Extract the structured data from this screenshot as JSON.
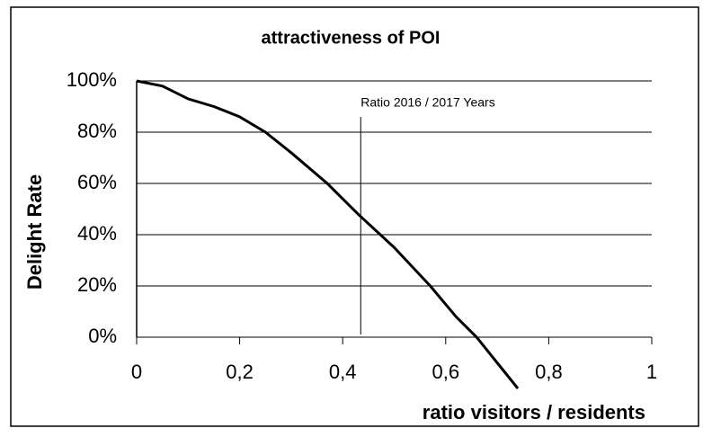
{
  "chart_data": {
    "type": "line",
    "title": "attractiveness of POI",
    "x_label": "ratio visitors / residents",
    "y_label": "Delight Rate",
    "annotation": "Ratio 2016 / 2017 Years",
    "annotation_x": 0.435,
    "x": [
      0,
      0.05,
      0.1,
      0.15,
      0.2,
      0.25,
      0.3,
      0.37,
      0.43,
      0.5,
      0.57,
      0.62,
      0.66,
      0.7,
      0.74
    ],
    "values": [
      100,
      98,
      93,
      90,
      86,
      80,
      72,
      60,
      48,
      35,
      20,
      8,
      0,
      -10,
      -20
    ],
    "color": "#000000",
    "xlim": [
      0,
      1
    ],
    "xticks": [
      0,
      {
        "value": 0.2,
        "label": "0,2"
      },
      {
        "value": 0.4,
        "label": "0,4"
      },
      {
        "value": 0.6,
        "label": "0,6"
      },
      {
        "value": 0.8,
        "label": "0,8"
      },
      1
    ],
    "ylim": [
      0,
      100
    ],
    "yticks": [
      {
        "value": 0,
        "label": "0%"
      },
      {
        "value": 20,
        "label": "20%"
      },
      {
        "value": 40,
        "label": "40%"
      },
      {
        "value": 60,
        "label": "60%"
      },
      {
        "value": 80,
        "label": "80%"
      },
      {
        "value": 100,
        "label": "100%"
      }
    ],
    "grid": true
  }
}
